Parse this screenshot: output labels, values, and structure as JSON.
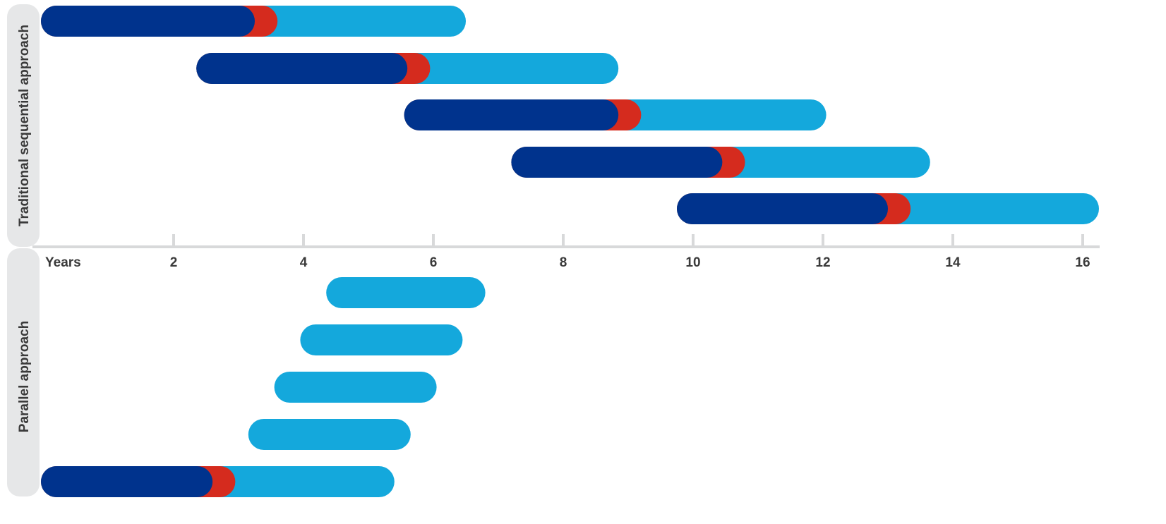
{
  "chart_data": {
    "type": "gantt",
    "axis_label": "Years",
    "x_ticks": [
      2,
      4,
      6,
      8,
      10,
      12,
      14,
      16
    ],
    "xlim": [
      0,
      16.4
    ],
    "colors": {
      "dark_phase": "#00338d",
      "red_phase": "#d52b1e",
      "light_phase": "#14a8dc",
      "panel": "#e6e7e8",
      "axis": "#d8d9da",
      "text": "#3a3a3a"
    },
    "groups": [
      {
        "label": "Traditional sequential approach",
        "bars": [
          {
            "start": 0.0,
            "dark_end": 3.25,
            "red_end": 3.6,
            "end": 6.5
          },
          {
            "start": 2.35,
            "dark_end": 5.6,
            "red_end": 5.95,
            "end": 8.85
          },
          {
            "start": 5.55,
            "dark_end": 8.85,
            "red_end": 9.2,
            "end": 12.05
          },
          {
            "start": 7.2,
            "dark_end": 10.45,
            "red_end": 10.8,
            "end": 13.65
          },
          {
            "start": 9.75,
            "dark_end": 13.0,
            "red_end": 13.35,
            "end": 16.25
          }
        ]
      },
      {
        "label": "Parallel approach",
        "bars": [
          {
            "start": 4.35,
            "dark_end": null,
            "red_end": null,
            "end": 6.8
          },
          {
            "start": 3.95,
            "dark_end": null,
            "red_end": null,
            "end": 6.45
          },
          {
            "start": 3.55,
            "dark_end": null,
            "red_end": null,
            "end": 6.05
          },
          {
            "start": 3.15,
            "dark_end": null,
            "red_end": null,
            "end": 5.65
          },
          {
            "start": 0.0,
            "dark_end": 2.6,
            "red_end": 2.95,
            "end": 5.4
          }
        ]
      }
    ]
  }
}
